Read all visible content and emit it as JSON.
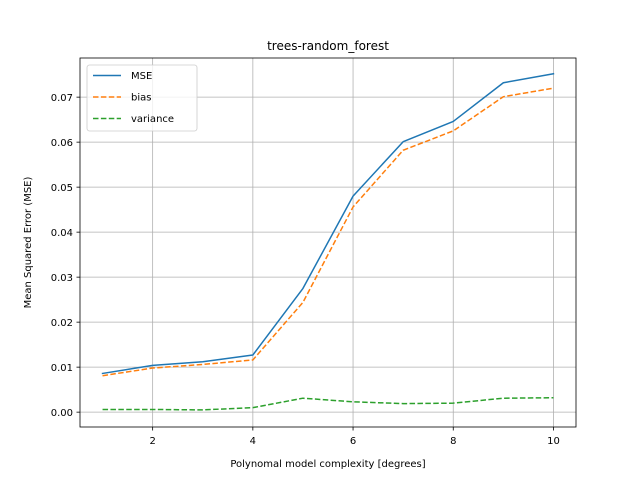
{
  "chart_data": {
    "type": "line",
    "title": "trees-random_forest",
    "xlabel": "Polynomal model complexity [degrees]",
    "ylabel": "Mean Squared Error (MSE)",
    "x": [
      1,
      2,
      3,
      4,
      5,
      6,
      7,
      8,
      9,
      10
    ],
    "xlim": [
      0.55,
      10.45
    ],
    "ylim": [
      -0.0033,
      0.0787
    ],
    "xticks": [
      2,
      4,
      6,
      8,
      10
    ],
    "yticks": [
      0.0,
      0.01,
      0.02,
      0.03,
      0.04,
      0.05,
      0.06,
      0.07
    ],
    "ytick_labels": [
      "0.00",
      "0.01",
      "0.02",
      "0.03",
      "0.04",
      "0.05",
      "0.06",
      "0.07"
    ],
    "grid": true,
    "legend_position": "upper-left",
    "series": [
      {
        "name": "MSE",
        "color": "#1f77b4",
        "dash": "solid",
        "values": [
          0.0086,
          0.0104,
          0.0112,
          0.0127,
          0.0275,
          0.048,
          0.0601,
          0.0646,
          0.0732,
          0.0752
        ]
      },
      {
        "name": "bias",
        "color": "#ff7f0e",
        "dash": "dashed",
        "values": [
          0.0081,
          0.0098,
          0.0106,
          0.0116,
          0.0244,
          0.0456,
          0.0582,
          0.0625,
          0.0701,
          0.072
        ]
      },
      {
        "name": "variance",
        "color": "#2ca02c",
        "dash": "dashed",
        "values": [
          0.0006,
          0.0006,
          0.0005,
          0.001,
          0.0031,
          0.0023,
          0.0019,
          0.002,
          0.0031,
          0.0032
        ]
      }
    ]
  }
}
